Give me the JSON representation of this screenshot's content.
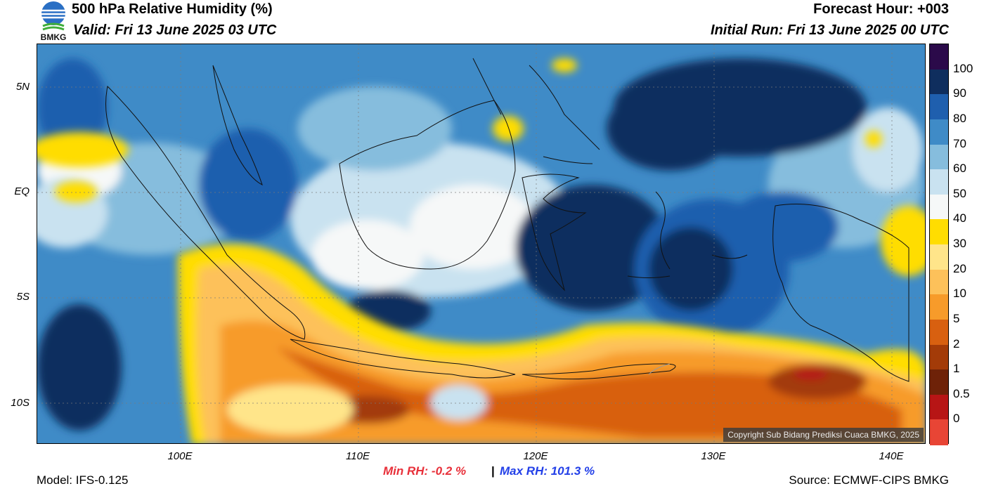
{
  "header": {
    "title": "500 hPa Relative Humidity (%)",
    "valid": "Valid: Fri 13 June 2025 03 UTC",
    "forecast_hour": "Forecast Hour: +003",
    "initial_run": "Initial Run: Fri 13 June 2025 00 UTC",
    "logo_text": "BMKG"
  },
  "axes": {
    "lat_labels": [
      "5N",
      "EQ",
      "5S",
      "10S"
    ],
    "lon_labels": [
      "100E",
      "110E",
      "120E",
      "130E",
      "140E"
    ]
  },
  "colorbar": {
    "labels": [
      "100",
      "90",
      "80",
      "70",
      "60",
      "50",
      "40",
      "30",
      "20",
      "10",
      "5",
      "2",
      "1",
      "0.5",
      "0"
    ],
    "colors": [
      "#2b0a4a",
      "#0f2e5e",
      "#1f5fae",
      "#3f8bc7",
      "#86bddd",
      "#c9e2f0",
      "#f6f8f8",
      "#ffdd00",
      "#ffe58a",
      "#fdc15a",
      "#f79b2a",
      "#d86010",
      "#a33b08",
      "#6e2208",
      "#b71515",
      "#e84535"
    ]
  },
  "map": {
    "copyright": "Copyright Sub Bidang Prediksi Cuaca BMKG, 2025"
  },
  "footer": {
    "model": "Model: IFS-0.125",
    "min_rh": "Min RH:  -0.2 %",
    "separator": "|",
    "max_rh": "Max RH: 101.3 %",
    "source": "Source: ECMWF-CIPS BMKG"
  },
  "colors": {
    "min_rh": "#e8303a",
    "max_rh": "#2340e8"
  }
}
